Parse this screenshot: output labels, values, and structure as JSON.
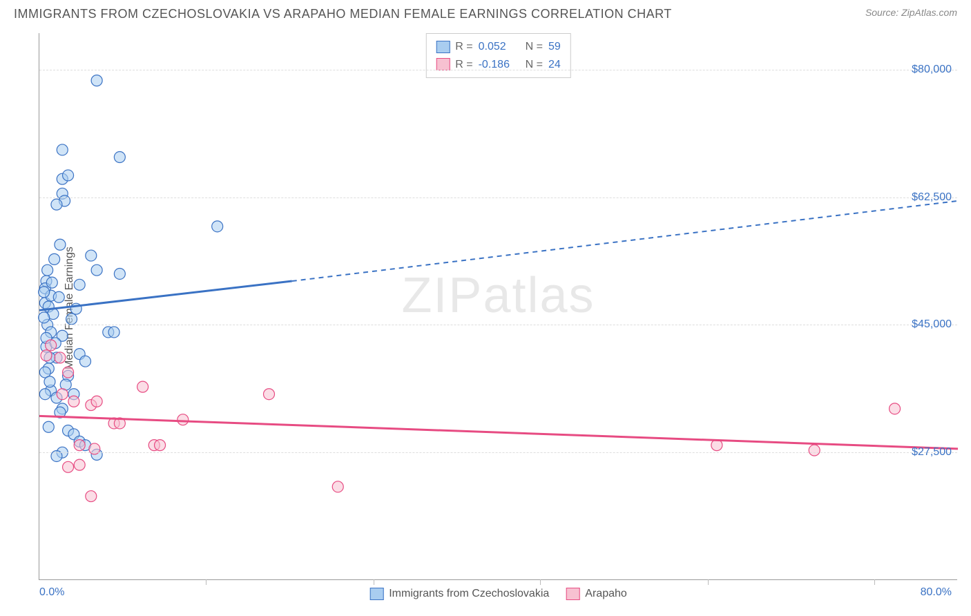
{
  "title": "IMMIGRANTS FROM CZECHOSLOVAKIA VS ARAPAHO MEDIAN FEMALE EARNINGS CORRELATION CHART",
  "source_label": "Source: ",
  "source_value": "ZipAtlas.com",
  "ylabel": "Median Female Earnings",
  "watermark_zip": "ZIP",
  "watermark_atlas": "atlas",
  "chart": {
    "type": "scatter",
    "xlim": [
      0,
      80
    ],
    "ylim": [
      10000,
      85000
    ],
    "x_min_label": "0.0%",
    "x_max_label": "80.0%",
    "x_label_color": "#3a72c4",
    "y_ticks": [
      27500,
      45000,
      62500,
      80000
    ],
    "y_tick_labels": [
      "$27,500",
      "$45,000",
      "$62,500",
      "$80,000"
    ],
    "y_label_color": "#3a72c4",
    "grid_color": "#dddddd",
    "axis_color": "#999999",
    "xtick_marks": [
      14.5,
      29.1,
      43.6,
      58.2,
      72.7
    ],
    "background_color": "#ffffff",
    "series": [
      {
        "name": "Immigrants from Czechoslovakia",
        "fill": "#a9cdf0",
        "stroke": "#3a72c4",
        "r_value": "0.052",
        "n_value": "59",
        "marker_radius": 8,
        "fill_opacity": 0.55,
        "trend": {
          "x1": 0,
          "y1": 47000,
          "x2": 22,
          "y2": 51000,
          "x3": 80,
          "y3": 62000,
          "solid_width": 3,
          "dash_width": 2
        },
        "points": [
          [
            0.5,
            48000
          ],
          [
            0.6,
            51000
          ],
          [
            0.8,
            47500
          ],
          [
            0.5,
            50000
          ],
          [
            1.0,
            49000
          ],
          [
            0.7,
            45000
          ],
          [
            1.2,
            46500
          ],
          [
            5.0,
            78500
          ],
          [
            2.0,
            69000
          ],
          [
            7.0,
            68000
          ],
          [
            2.0,
            65000
          ],
          [
            2.5,
            65500
          ],
          [
            2.0,
            63000
          ],
          [
            2.2,
            62000
          ],
          [
            1.5,
            61500
          ],
          [
            1.8,
            56000
          ],
          [
            4.5,
            54500
          ],
          [
            5.0,
            52500
          ],
          [
            7.0,
            52000
          ],
          [
            3.5,
            50500
          ],
          [
            1.0,
            44000
          ],
          [
            2.0,
            43500
          ],
          [
            6.0,
            44000
          ],
          [
            6.5,
            44000
          ],
          [
            3.5,
            41000
          ],
          [
            1.5,
            40500
          ],
          [
            4.0,
            40000
          ],
          [
            0.8,
            39000
          ],
          [
            2.5,
            38000
          ],
          [
            1.0,
            36000
          ],
          [
            1.5,
            35000
          ],
          [
            0.5,
            35500
          ],
          [
            3.0,
            35500
          ],
          [
            2.0,
            33500
          ],
          [
            1.8,
            33000
          ],
          [
            0.8,
            31000
          ],
          [
            2.5,
            30500
          ],
          [
            3.0,
            30000
          ],
          [
            3.5,
            29000
          ],
          [
            4.0,
            28500
          ],
          [
            2.0,
            27500
          ],
          [
            1.5,
            27000
          ],
          [
            5.0,
            27200
          ],
          [
            0.6,
            42000
          ],
          [
            0.9,
            40500
          ],
          [
            0.5,
            38500
          ],
          [
            0.4,
            46000
          ],
          [
            1.3,
            54000
          ],
          [
            15.5,
            58500
          ],
          [
            0.7,
            52500
          ],
          [
            1.1,
            50800
          ],
          [
            0.6,
            43200
          ],
          [
            3.2,
            47200
          ],
          [
            2.8,
            45800
          ],
          [
            1.7,
            48800
          ],
          [
            0.9,
            37200
          ],
          [
            0.4,
            49500
          ],
          [
            1.4,
            42500
          ],
          [
            2.3,
            36800
          ]
        ]
      },
      {
        "name": "Arapaho",
        "fill": "#f7c1d1",
        "stroke": "#e74b82",
        "r_value": "-0.186",
        "n_value": "24",
        "marker_radius": 8,
        "fill_opacity": 0.55,
        "trend": {
          "x1": 0,
          "y1": 32500,
          "x2": 80,
          "y2": 28000,
          "solid_width": 3
        },
        "points": [
          [
            0.6,
            40800
          ],
          [
            1.8,
            40500
          ],
          [
            1.0,
            42200
          ],
          [
            2.5,
            38500
          ],
          [
            2.0,
            35500
          ],
          [
            3.0,
            34500
          ],
          [
            4.5,
            34000
          ],
          [
            5.0,
            34500
          ],
          [
            9.0,
            36500
          ],
          [
            6.5,
            31500
          ],
          [
            7.0,
            31500
          ],
          [
            12.5,
            32000
          ],
          [
            20.0,
            35500
          ],
          [
            4.8,
            28000
          ],
          [
            3.5,
            28500
          ],
          [
            10.0,
            28500
          ],
          [
            10.5,
            28500
          ],
          [
            2.5,
            25500
          ],
          [
            3.5,
            25800
          ],
          [
            4.5,
            21500
          ],
          [
            26.0,
            22800
          ],
          [
            59.0,
            28500
          ],
          [
            67.5,
            27800
          ],
          [
            74.5,
            33500
          ]
        ]
      }
    ]
  },
  "legend_top": {
    "r_label": "R =",
    "n_label": "N =",
    "value_color": "#3a72c4",
    "label_color": "#666666"
  },
  "legend_bottom_label_color": "#555555"
}
